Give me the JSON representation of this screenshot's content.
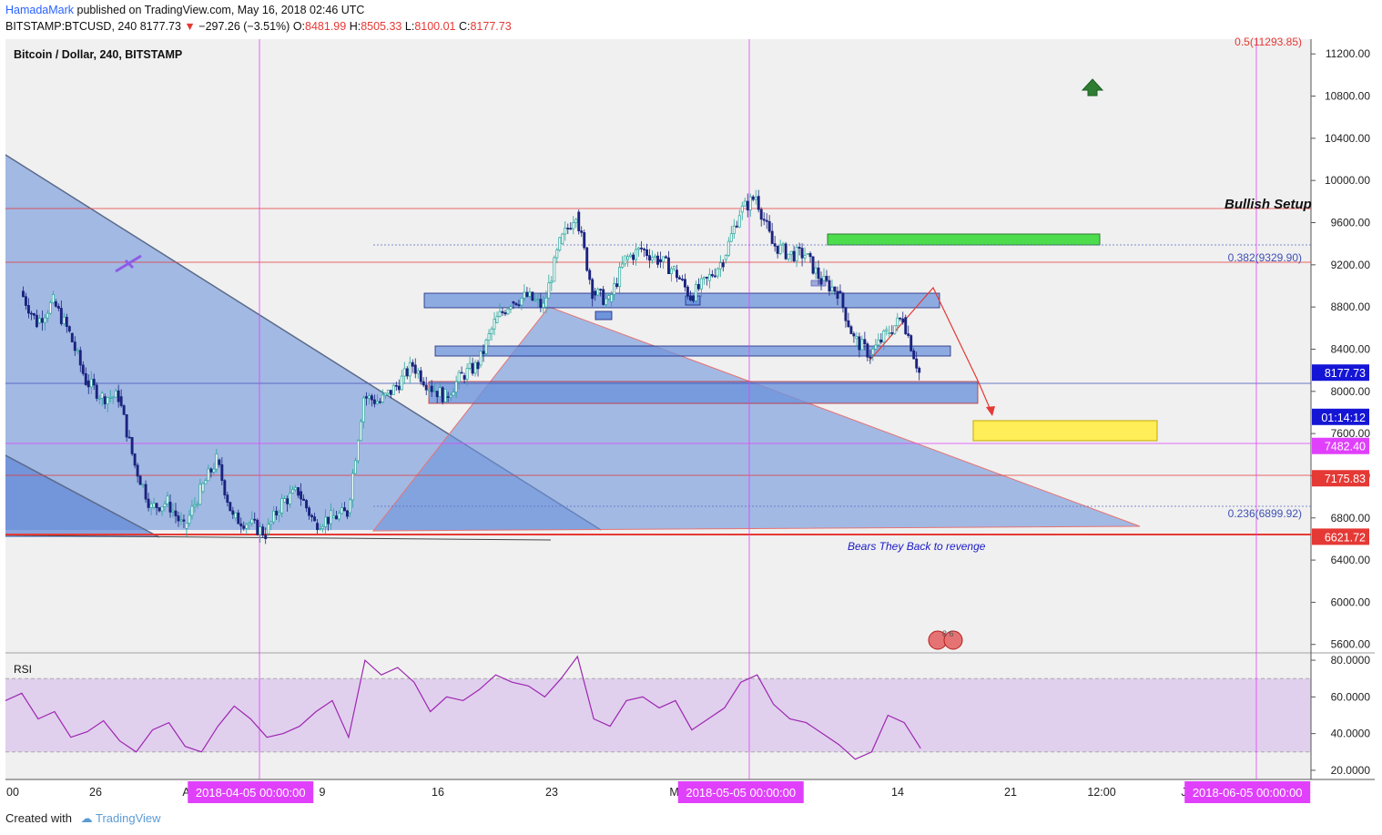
{
  "header": {
    "author": "HamadaMark",
    "published": "published on TradingView.com, May 16, 2018 02:46 UTC",
    "symbol": "BITSTAMP:BTCUSD, 240",
    "last": "8177.73",
    "change_arrow": "▼",
    "change": "−297.26 (−3.51%)",
    "o_label": "O:",
    "o": "8481.99",
    "h_label": "H:",
    "h": "8505.33",
    "l_label": "L:",
    "l": "8100.01",
    "c_label": "C:",
    "c": "8177.73"
  },
  "footer": {
    "created_with": "Created with",
    "brand": "TradingView"
  },
  "colors": {
    "up": "#26a69a",
    "down": "#1a237e",
    "red_line": "#e53935",
    "magenta": "#e040fb",
    "rsi": "#9c27b0",
    "blue_zone": "#6e94dc",
    "green_zone": "#4cdc4c",
    "yellow_zone": "#ffee58",
    "arrow_green": "#2e7d32"
  },
  "chart_data": {
    "type": "candlestick",
    "title": "Bitcoin / Dollar, 240, BITSTAMP",
    "price_axis": {
      "ticks": [
        5600,
        6000,
        6400,
        6800,
        7200,
        7600,
        8000,
        8400,
        8800,
        9200,
        9600,
        10000,
        10400,
        10800,
        11200
      ],
      "ylim": [
        5520,
        11340
      ],
      "decimals": 2
    },
    "time_axis": {
      "labels": [
        "00",
        "26",
        "Ap",
        "9",
        "16",
        "23",
        "Ma",
        "14",
        "21",
        "12:00",
        "Ju"
      ]
    },
    "close_path": [
      [
        "2018-03-22",
        8950
      ],
      [
        "2018-03-23",
        8650
      ],
      [
        "2018-03-24",
        8850
      ],
      [
        "2018-03-25",
        8550
      ],
      [
        "2018-03-26",
        8100
      ],
      [
        "2018-03-27",
        7950
      ],
      [
        "2018-03-28",
        7950
      ],
      [
        "2018-03-29",
        7300
      ],
      [
        "2018-03-30",
        6900
      ],
      [
        "2018-03-31",
        6950
      ],
      [
        "2018-04-01",
        6700
      ],
      [
        "2018-04-02",
        7050
      ],
      [
        "2018-04-03",
        7350
      ],
      [
        "2018-04-04",
        6800
      ],
      [
        "2018-04-05",
        6750
      ],
      [
        "2018-04-06",
        6650
      ],
      [
        "2018-04-07",
        6950
      ],
      [
        "2018-04-08",
        7050
      ],
      [
        "2018-04-09",
        6750
      ],
      [
        "2018-04-10",
        6800
      ],
      [
        "2018-04-11",
        6850
      ],
      [
        "2018-04-12",
        7950
      ],
      [
        "2018-04-13",
        7900
      ],
      [
        "2018-04-14",
        8050
      ],
      [
        "2018-04-15",
        8250
      ],
      [
        "2018-04-16",
        8050
      ],
      [
        "2018-04-17",
        7950
      ],
      [
        "2018-04-18",
        8150
      ],
      [
        "2018-04-19",
        8250
      ],
      [
        "2018-04-20",
        8650
      ],
      [
        "2018-04-21",
        8850
      ],
      [
        "2018-04-22",
        8900
      ],
      [
        "2018-04-23",
        8800
      ],
      [
        "2018-04-24",
        9400
      ],
      [
        "2018-04-25",
        9700
      ],
      [
        "2018-04-26",
        8950
      ],
      [
        "2018-04-27",
        8850
      ],
      [
        "2018-04-28",
        9250
      ],
      [
        "2018-04-29",
        9350
      ],
      [
        "2018-04-30",
        9250
      ],
      [
        "2018-05-01",
        9150
      ],
      [
        "2018-05-02",
        8900
      ],
      [
        "2018-05-03",
        9050
      ],
      [
        "2018-05-04",
        9250
      ],
      [
        "2018-05-05",
        9700
      ],
      [
        "2018-05-06",
        9850
      ],
      [
        "2018-05-07",
        9400
      ],
      [
        "2018-05-08",
        9300
      ],
      [
        "2018-05-09",
        9300
      ],
      [
        "2018-05-10",
        9050
      ],
      [
        "2018-05-11",
        8950
      ],
      [
        "2018-05-12",
        8500
      ],
      [
        "2018-05-13",
        8350
      ],
      [
        "2018-05-14",
        8550
      ],
      [
        "2018-05-15",
        8700
      ],
      [
        "2018-05-16",
        8177.73
      ]
    ],
    "indicator": {
      "name": "RSI",
      "ticks": [
        20,
        40,
        60,
        80
      ],
      "ylim": [
        15,
        84
      ],
      "band": [
        30,
        70
      ],
      "values": [
        58,
        62,
        48,
        52,
        38,
        41,
        47,
        36,
        30,
        42,
        46,
        33,
        30,
        44,
        55,
        48,
        38,
        40,
        44,
        52,
        58,
        38,
        80,
        72,
        76,
        68,
        52,
        60,
        58,
        64,
        72,
        68,
        66,
        60,
        70,
        82,
        48,
        44,
        58,
        60,
        54,
        58,
        42,
        48,
        54,
        68,
        72,
        56,
        48,
        46,
        40,
        34,
        26,
        30,
        50,
        46,
        32
      ]
    },
    "price_labels": [
      {
        "price": 8177.73,
        "text": "8177.73",
        "bg": "#1515d6"
      },
      {
        "price": 8000,
        "text": "01:14:12",
        "bg": "#1515d6"
      },
      {
        "price": 7482.4,
        "text": "7482.40",
        "bg": "#e040fb"
      },
      {
        "price": 7175.83,
        "text": "7175.83",
        "bg": "#e53935"
      },
      {
        "price": 6621.72,
        "text": "6621.72",
        "bg": "#e53935"
      }
    ],
    "fib_levels": [
      {
        "price": 11293.85,
        "text": "0.5(11293.85)",
        "color": "#e53935"
      },
      {
        "price": 9329.9,
        "text": "0.382(9329.90)",
        "color": "#3f51b5"
      },
      {
        "price": 6899.92,
        "text": "0.236(6899.92)",
        "color": "#3f51b5"
      }
    ],
    "annotations": {
      "bullish_setup": "Bullish Setup",
      "bears": "Bears They Back to revenge",
      "rsi_label": "RSI",
      "event_badge": "8 6"
    },
    "date_markers": [
      "2018-04-05 00:00:00",
      "2018-05-05 00:00:00",
      "2018-06-05 00:00:00"
    ]
  }
}
